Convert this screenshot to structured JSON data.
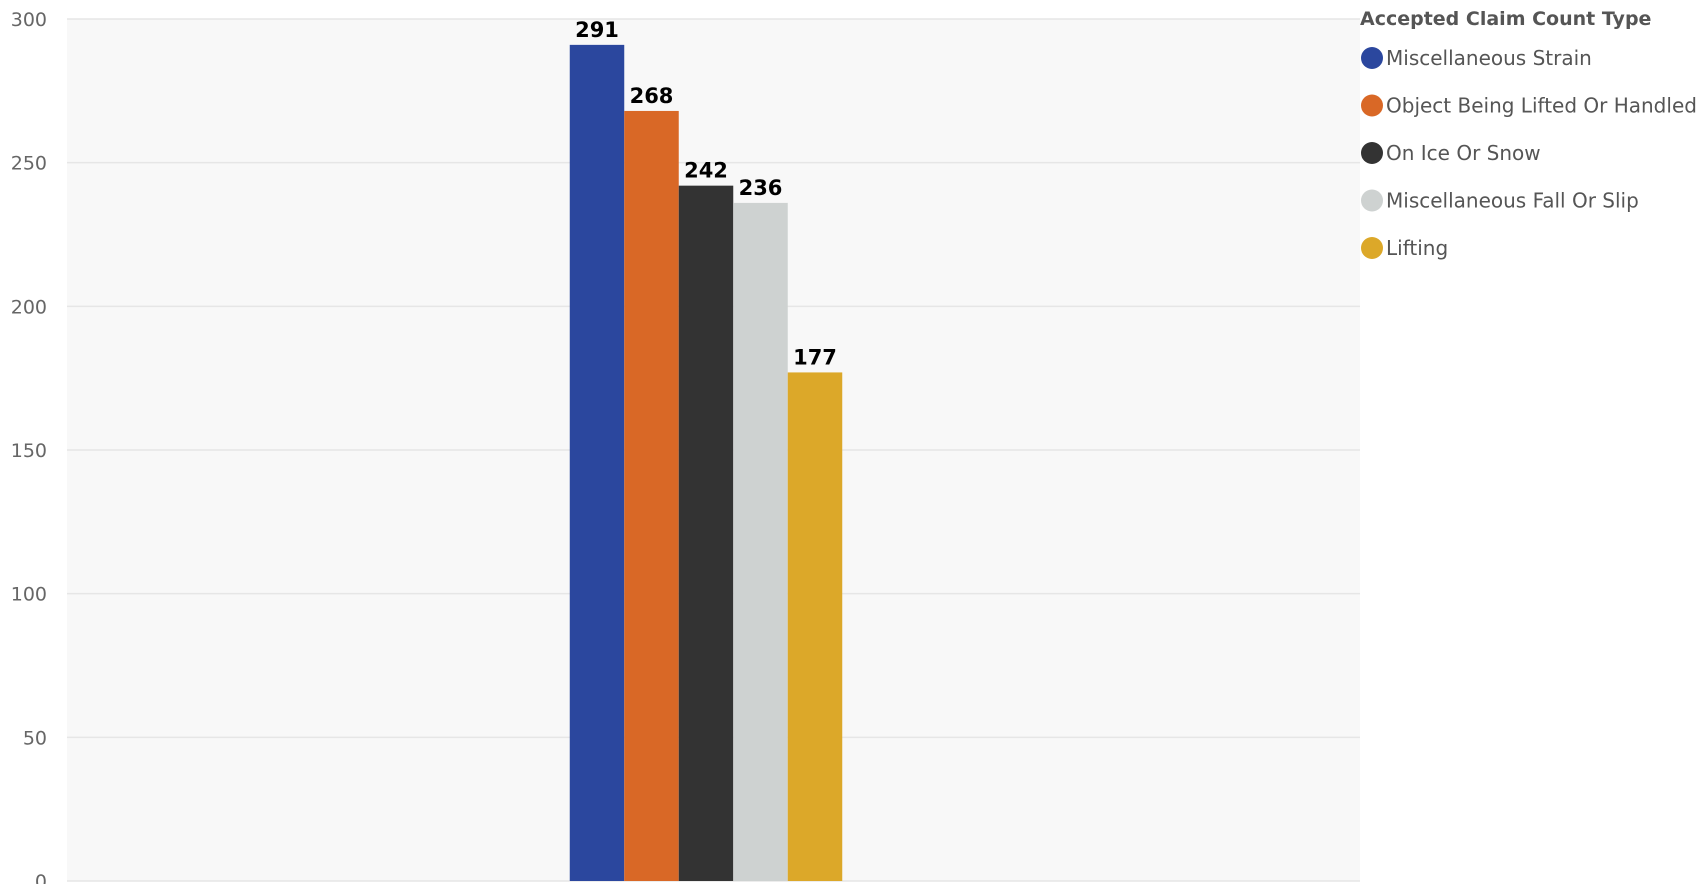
{
  "chart_data": {
    "type": "bar",
    "categories": [
      ""
    ],
    "series": [
      {
        "name": "Miscellaneous Strain",
        "values": [
          291
        ],
        "color": "#2B479E"
      },
      {
        "name": "Object Being Lifted Or Handled",
        "values": [
          268
        ],
        "color": "#D96826"
      },
      {
        "name": "On Ice Or Snow",
        "values": [
          242
        ],
        "color": "#333333"
      },
      {
        "name": "Miscellaneous Fall Or Slip",
        "values": [
          236
        ],
        "color": "#CED2D1"
      },
      {
        "name": "Lifting",
        "values": [
          177
        ],
        "color": "#DCA829"
      }
    ],
    "title": "",
    "xlabel": "",
    "ylabel": "",
    "ylim": [
      0,
      300
    ],
    "yticks": [
      0,
      50,
      100,
      150,
      200,
      250,
      300
    ],
    "grid": true,
    "legend": {
      "title": "Accepted Claim Count Type",
      "position": "top-right"
    },
    "data_labels": true
  },
  "colors": {
    "plot_background": "#F8F8F8",
    "gridline": "#E6E6E6",
    "axis_text": "#666666",
    "legend_text": "#555555"
  }
}
